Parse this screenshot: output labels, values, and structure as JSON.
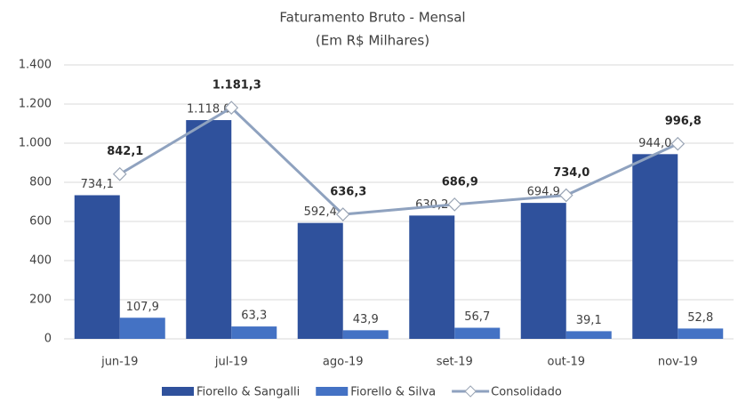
{
  "chart_data": {
    "type": "bar",
    "title": "Faturamento Bruto -  Mensal",
    "subtitle": "(Em R$ Milhares)",
    "categories": [
      "jun-19",
      "jul-19",
      "ago-19",
      "set-19",
      "out-19",
      "nov-19"
    ],
    "series": [
      {
        "name": "Fiorello & Sangalli",
        "color": "#2f519c",
        "type": "bar",
        "values": [
          734.1,
          1118.0,
          592.4,
          630.2,
          694.9,
          944.0
        ],
        "value_labels": [
          "734,1",
          "1.118,0",
          "592,4",
          "630,2",
          "694,9",
          "944,0"
        ]
      },
      {
        "name": "Fiorello & Silva",
        "color": "#4472c4",
        "type": "bar",
        "values": [
          107.9,
          63.3,
          43.9,
          56.7,
          39.1,
          52.8
        ],
        "value_labels": [
          "107,9",
          "63,3",
          "43,9",
          "56,7",
          "39,1",
          "52,8"
        ]
      },
      {
        "name": "Consolidado",
        "color": "#8fa2bf",
        "type": "line",
        "values": [
          842.1,
          1181.3,
          636.3,
          686.9,
          734.0,
          996.8
        ],
        "value_labels": [
          "842,1",
          "1.181,3",
          "636,3",
          "686,9",
          "734,0",
          "996,8"
        ]
      }
    ],
    "ylim": [
      0,
      1400
    ],
    "yticks": [
      0,
      200,
      400,
      600,
      800,
      {
        "value": 1000,
        "label": "1.000"
      },
      {
        "value": 1200,
        "label": "1.200"
      },
      {
        "value": 1400,
        "label": "1.400"
      }
    ],
    "grid": true,
    "legend": "bottom"
  }
}
